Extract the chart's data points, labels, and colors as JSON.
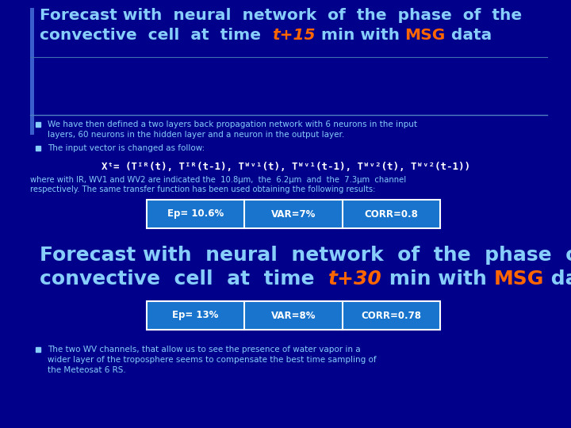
{
  "bg_color": "#00008B",
  "title_color": "#87CEFA",
  "title_italic_color": "#FF6600",
  "title_msg_color": "#FF6600",
  "bullet_color": "#87CEFA",
  "table_text_color": "#FFFFFF",
  "table_bg_color": "#1874CD",
  "table_border_color": "#FFFFFF",
  "small_text_color": "#87CEFA",
  "left_bar_color": "#1E3A8A",
  "bullet1_line1": "We have then defined a two layers back propagation network with 6 neurons in the input",
  "bullet1_line2": "layers, 60 neurons in the hidden layer and a neuron in the output layer.",
  "bullet2": "The input vector is changed as follow:",
  "formula_normal1": "X",
  "formula_super1": "t",
  "formula_normal2": "= (",
  "formula_colored": "T",
  "formula_sup_ir1": "IR",
  "formula_col2": "(t), T",
  "formula_sup_ir2": "IR",
  "formula_col3": "(t-1)",
  "formula_normal3": ", T",
  "formula_sup_wv1a": "WV1",
  "formula_normal4": "(t), T",
  "formula_sup_wv1b": "WV1",
  "formula_normal5": "(t-1), T",
  "formula_sup_wv2a": "WV2",
  "formula_normal6": "(t), T",
  "formula_sup_wv2b": "WV2",
  "formula_normal7": "(t-1))",
  "where_line1": "where with IR, WV1 and WV2 are indicated the  10.8μm,  the  6.2μm  and  the  7.3μm  channel",
  "where_line2": "respectively. The same transfer function has been used obtaining the following results:",
  "table1_ep": "Ep= 10.6%",
  "table1_var": "VAR=7%",
  "table1_corr": "CORR=0.8",
  "table2_ep": "Ep= 13%",
  "table2_var": "VAR=8%",
  "table2_corr": "CORR=0.78",
  "bullet3_line1": "The two WV channels, that allow us to see the presence of water vapor in a",
  "bullet3_line2": "wider layer of the troposphere seems to compensate the best time sampling of",
  "bullet3_line3": "the Meteosat 6 RS."
}
